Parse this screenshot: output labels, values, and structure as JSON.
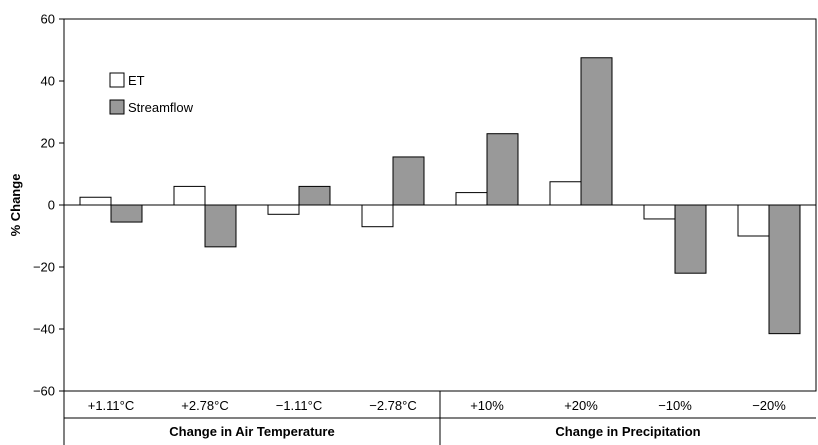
{
  "chart_data": {
    "type": "bar",
    "ylabel": "% Change",
    "ylim": [
      -60,
      60
    ],
    "yticks": [
      60,
      40,
      20,
      0,
      -20,
      -40,
      -60
    ],
    "ytick_labels": [
      "60",
      "40",
      "20",
      "0",
      "−20",
      "−40",
      "−60"
    ],
    "categories": [
      "+1.11°C",
      "+2.78°C",
      "−1.11°C",
      "−2.78°C",
      "+10%",
      "+20%",
      "−10%",
      "−20%"
    ],
    "groups": [
      {
        "label": "Change in Air Temperature",
        "start": 0,
        "end": 3
      },
      {
        "label": "Change in Precipitation",
        "start": 4,
        "end": 7
      }
    ],
    "series": [
      {
        "name": "ET",
        "color": "#ffffff",
        "values": [
          2.5,
          6,
          -3,
          -7,
          4,
          7.5,
          -4.5,
          -10
        ]
      },
      {
        "name": "Streamflow",
        "color": "#999999",
        "values": [
          -5.5,
          -13.5,
          6,
          15.5,
          23,
          47.5,
          -22,
          -41.5
        ]
      }
    ],
    "legend": "top-left",
    "grid": false
  }
}
